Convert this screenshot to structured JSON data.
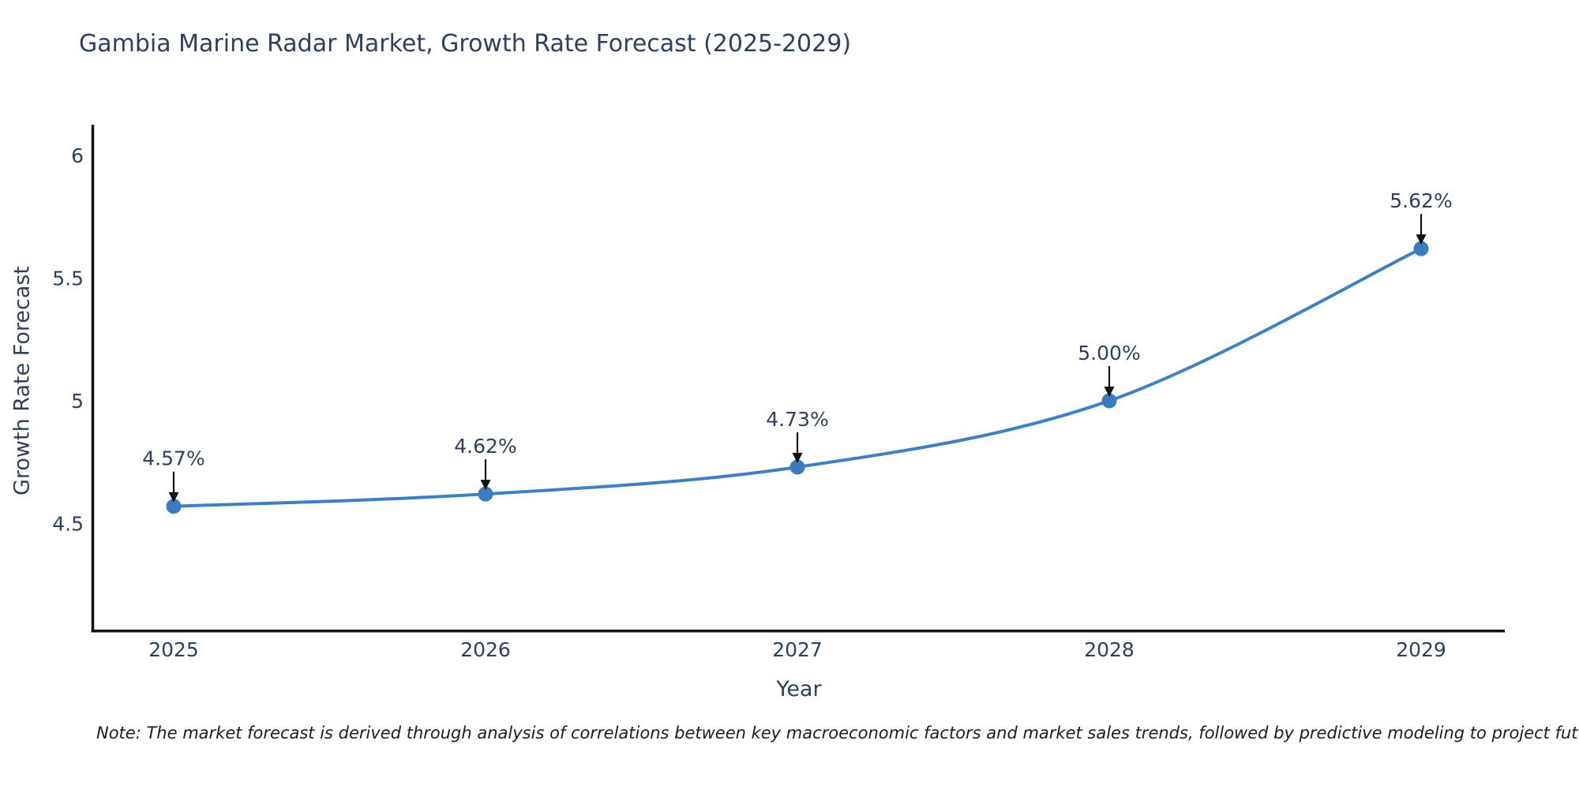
{
  "chart": {
    "title": "Gambia Marine Radar Market, Growth Rate Forecast (2025-2029)",
    "x_axis": {
      "title": "Year",
      "ticks": [
        "2025",
        "2026",
        "2027",
        "2028",
        "2029"
      ]
    },
    "y_axis": {
      "title": "Growth Rate Forecast",
      "ticks": [
        "4.5",
        "5",
        "5.5",
        "6"
      ],
      "tick_values": [
        4.5,
        5,
        5.5,
        6
      ]
    },
    "note": "Note: The market forecast is derived through analysis of correlations between key macroeconomic factors and market sales trends, followed by predictive modeling to project future sales"
  },
  "chart_data": {
    "type": "line",
    "title": "Gambia Marine Radar Market, Growth Rate Forecast (2025-2029)",
    "xlabel": "Year",
    "ylabel": "Growth Rate Forecast",
    "x": [
      2025,
      2026,
      2027,
      2028,
      2029
    ],
    "values": [
      4.57,
      4.62,
      4.73,
      5.0,
      5.62
    ],
    "labels": [
      "4.57%",
      "4.62%",
      "4.73%",
      "5.00%",
      "5.62%"
    ],
    "ylim": [
      4.06,
      6.24
    ],
    "xlim": [
      2024.74,
      2029.27
    ],
    "grid": false,
    "legend": "none",
    "line_shape": "spline",
    "colors": {
      "line": "#3e80c0",
      "marker": "#3a7cbd",
      "axis": "#111111",
      "arrow": "#111111",
      "text": "#2e3f5f",
      "note": "#1c1c1c"
    }
  }
}
